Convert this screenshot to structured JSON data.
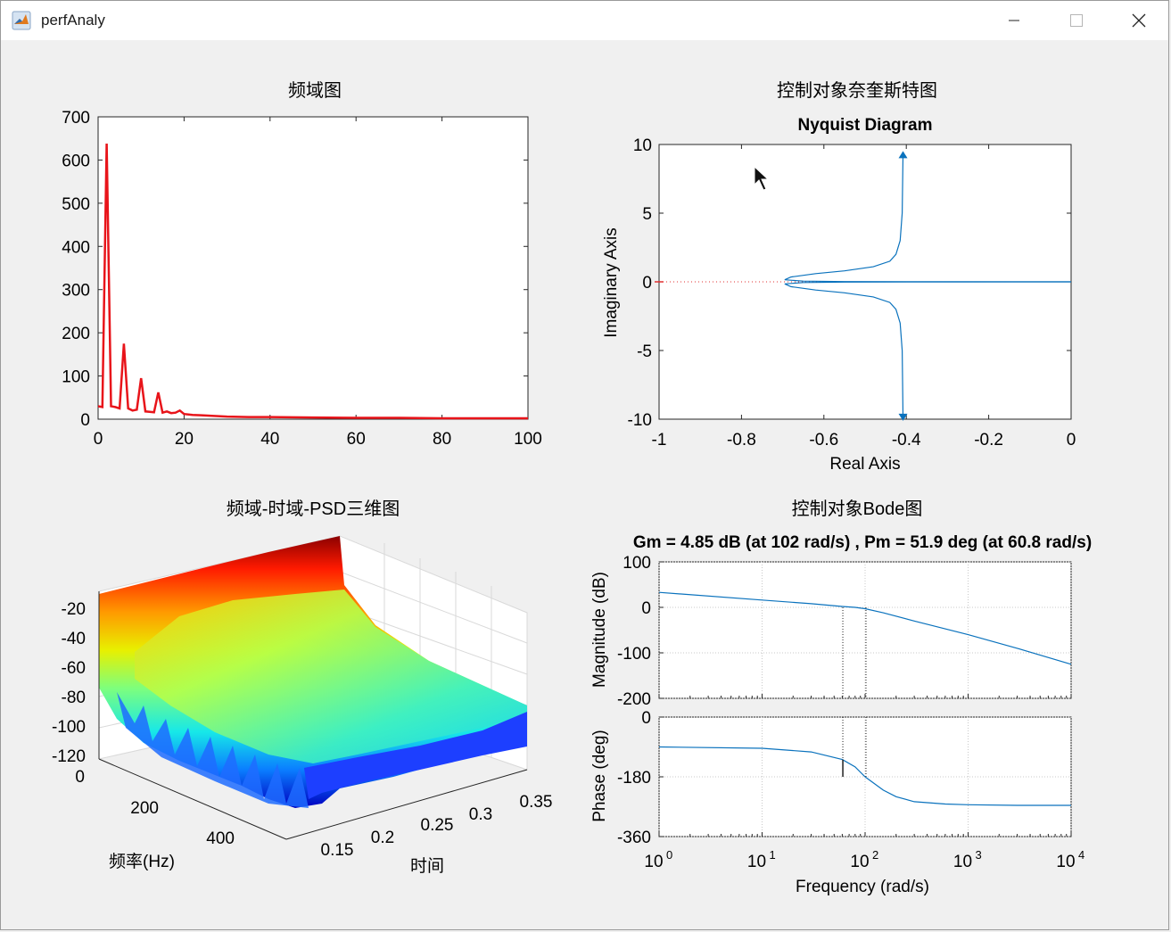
{
  "window": {
    "title": "perfAnaly",
    "controls": [
      "minimize-icon",
      "maximize-icon",
      "close-icon"
    ],
    "icon": "matlab-icon"
  },
  "plots": {
    "fft": {
      "title": "频域图",
      "color": "#e8141a"
    },
    "nyquist": {
      "title": "控制对象奈奎斯特图",
      "subtitle": "Nyquist Diagram",
      "color": "#0a72bd"
    },
    "psd3d": {
      "title": "频域-时域-PSD三维图",
      "z_ticks": [
        "-20",
        "-40",
        "-60",
        "-80",
        "-100",
        "-120"
      ],
      "freq_ticks": [
        "0",
        "200",
        "400"
      ],
      "time_ticks": [
        "0.15",
        "0.2",
        "0.25",
        "0.3",
        "0.35"
      ],
      "xlabel": "频率(Hz)",
      "ylabel": "时间"
    },
    "bode": {
      "title": "控制对象Bode图",
      "subtitle": "Gm = 4.85 dB (at 102 rad/s) ,  Pm = 51.9 deg (at 60.8 rad/s)",
      "color": "#0a72bd"
    }
  },
  "chart_data": [
    {
      "type": "line",
      "title": "频域图",
      "xlim": [
        0,
        100
      ],
      "ylim": [
        0,
        700
      ],
      "x_ticks": [
        "0",
        "20",
        "40",
        "60",
        "80",
        "100"
      ],
      "y_ticks": [
        "0",
        "100",
        "200",
        "300",
        "400",
        "500",
        "600",
        "700"
      ],
      "x": [
        0,
        1,
        2,
        3,
        4,
        5,
        6,
        7,
        8,
        9,
        10,
        11,
        12,
        13,
        14,
        15,
        16,
        17,
        18,
        19,
        20,
        22,
        24,
        26,
        28,
        30,
        35,
        40,
        50,
        60,
        70,
        80,
        90,
        100
      ],
      "y": [
        30,
        28,
        638,
        30,
        28,
        25,
        175,
        25,
        20,
        22,
        95,
        18,
        17,
        16,
        62,
        15,
        18,
        14,
        15,
        20,
        12,
        10,
        9,
        8,
        7,
        6,
        5,
        5,
        4,
        3,
        3,
        2,
        2,
        2
      ],
      "series": [
        {
          "values": "y"
        }
      ]
    },
    {
      "type": "line",
      "title": "Nyquist Diagram",
      "xlabel": "Real Axis",
      "ylabel": "Imaginary Axis",
      "xlim": [
        -1,
        0
      ],
      "ylim": [
        -10,
        10
      ],
      "x_ticks": [
        "-1",
        "-0.8",
        "-0.6",
        "-0.4",
        "-0.2",
        "0"
      ],
      "y_ticks": [
        "10",
        "5",
        "0",
        "-5",
        "-10"
      ],
      "critical_point": [
        -1,
        0
      ],
      "series": [
        {
          "x": [
            -0.408,
            -0.41,
            -0.415,
            -0.425,
            -0.44,
            -0.48,
            -0.55,
            -0.62,
            -0.68,
            -0.695,
            -0.65,
            -0.55,
            -0.4,
            -0.25,
            -0.1,
            0
          ],
          "y": [
            9.2,
            5,
            3,
            2,
            1.5,
            1.1,
            0.8,
            0.6,
            0.35,
            0.15,
            0.05,
            0.02,
            0.01,
            0.005,
            0.002,
            0
          ]
        },
        {
          "x": [
            -0.408,
            -0.41,
            -0.415,
            -0.425,
            -0.44,
            -0.48,
            -0.55,
            -0.62,
            -0.68,
            -0.695,
            -0.65,
            -0.55,
            -0.4,
            -0.25,
            -0.1,
            0
          ],
          "y": [
            -9.8,
            -5,
            -3,
            -2,
            -1.5,
            -1.1,
            -0.8,
            -0.6,
            -0.35,
            -0.15,
            -0.05,
            -0.02,
            -0.01,
            -0.005,
            -0.002,
            0
          ]
        }
      ]
    },
    {
      "type": "line",
      "title": "Gm = 4.85 dB (at 102 rad/s) ,  Pm = 51.9 deg (at 60.8 rad/s)",
      "xlabel": "Frequency  (rad/s)",
      "x_scale": "log",
      "xlim": [
        1,
        10000
      ],
      "x_ticks_base": [
        "10",
        "10",
        "10",
        "10",
        "10"
      ],
      "x_ticks_exp": [
        "0",
        "1",
        "2",
        "3",
        "4"
      ],
      "magnitude": {
        "ylabel": "Magnitude (dB)",
        "ylim": [
          -200,
          100
        ],
        "y_ticks": [
          "100",
          "0",
          "-100",
          "-200"
        ],
        "x": [
          1,
          10,
          30,
          60,
          80,
          100,
          150,
          300,
          1000,
          3000,
          10000
        ],
        "y": [
          33,
          16,
          8,
          2,
          0,
          -3,
          -12,
          -30,
          -60,
          -90,
          -125
        ]
      },
      "phase": {
        "ylabel": "Phase (deg)",
        "ylim": [
          -360,
          0
        ],
        "y_ticks": [
          "0",
          "-180",
          "-360"
        ],
        "x": [
          1,
          10,
          30,
          60,
          80,
          100,
          150,
          200,
          300,
          600,
          1000,
          3000,
          10000
        ],
        "y": [
          -90,
          -94,
          -105,
          -128,
          -150,
          -180,
          -220,
          -240,
          -255,
          -262,
          -264,
          -266,
          -266
        ]
      },
      "margins": {
        "gm_db": 4.85,
        "gm_freq": 102,
        "pm_deg": 51.9,
        "pm_freq": 60.8
      }
    }
  ]
}
